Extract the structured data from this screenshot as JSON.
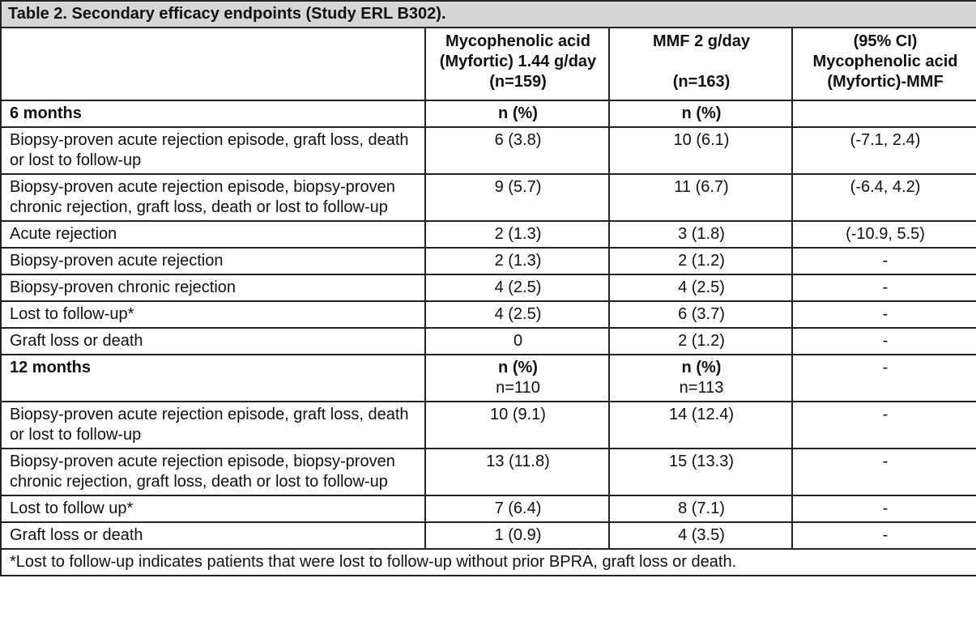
{
  "table": {
    "caption": "Table 2. Secondary efficacy endpoints (Study ERL B302).",
    "header": {
      "col1": "",
      "col2_lines": [
        "Mycophenolic acid",
        "(Myfortic) 1.44 g/day",
        "(n=159)"
      ],
      "col3_line1": "MMF 2 g/day",
      "col3_line3": "(n=163)",
      "col4_lines": [
        "(95% CI)",
        "Mycophenolic acid",
        "(Myfortic)-MMF"
      ]
    },
    "section1": {
      "label": "6 months",
      "col2": "n (%)",
      "col3": "n (%)",
      "col4": ""
    },
    "rows1": [
      {
        "label": "Biopsy-proven acute rejection episode, graft loss, death or lost to follow-up",
        "v1": "6 (3.8)",
        "v2": "10 (6.1)",
        "ci": "(-7.1, 2.4)"
      },
      {
        "label": "Biopsy-proven acute rejection episode, biopsy-proven chronic rejection, graft loss, death or lost to follow-up",
        "v1": "9 (5.7)",
        "v2": "11 (6.7)",
        "ci": "(-6.4, 4.2)"
      },
      {
        "label": "Acute rejection",
        "v1": "2 (1.3)",
        "v2": "3 (1.8)",
        "ci": "(-10.9, 5.5)"
      },
      {
        "label": "Biopsy-proven acute rejection",
        "v1": "2 (1.3)",
        "v2": "2 (1.2)",
        "ci": "-"
      },
      {
        "label": "Biopsy-proven chronic rejection",
        "v1": "4 (2.5)",
        "v2": "4 (2.5)",
        "ci": "-"
      },
      {
        "label": "Lost to follow-up*",
        "v1": "4 (2.5)",
        "v2": "6 (3.7)",
        "ci": "-"
      },
      {
        "label": "Graft loss or death",
        "v1": "0",
        "v2": "2 (1.2)",
        "ci": "-"
      }
    ],
    "section2": {
      "label": "12 months",
      "col2": "n (%)",
      "col2_n": "n=110",
      "col3": "n (%)",
      "col3_n": "n=113",
      "col4": "-"
    },
    "rows2": [
      {
        "label": "Biopsy-proven acute rejection episode, graft loss, death or lost to follow-up",
        "v1": "10 (9.1)",
        "v2": "14 (12.4)",
        "ci": "-"
      },
      {
        "label": "Biopsy-proven acute rejection episode, biopsy-proven chronic rejection, graft loss, death or lost to follow-up",
        "v1": "13 (11.8)",
        "v2": "15 (13.3)",
        "ci": "-"
      },
      {
        "label": "Lost to follow up*",
        "v1": "7 (6.4)",
        "v2": "8 (7.1)",
        "ci": "-"
      },
      {
        "label": "Graft loss or death",
        "v1": "1 (0.9)",
        "v2": "4 (3.5)",
        "ci": "-"
      }
    ],
    "footnote": "*Lost to follow-up indicates patients that were lost to follow-up without prior BPRA, graft loss or death."
  }
}
